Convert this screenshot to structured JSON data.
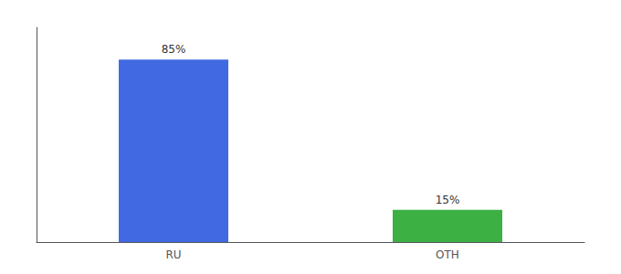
{
  "chart_data": {
    "type": "bar",
    "categories": [
      "RU",
      "OTH"
    ],
    "values": [
      85,
      15
    ],
    "colors": [
      "#4169E1",
      "#3CB043"
    ],
    "ylim": [
      0,
      100
    ],
    "data_labels": true,
    "value_labels": [
      "85%",
      "15%"
    ],
    "tick_labels": "x",
    "grid": false
  }
}
